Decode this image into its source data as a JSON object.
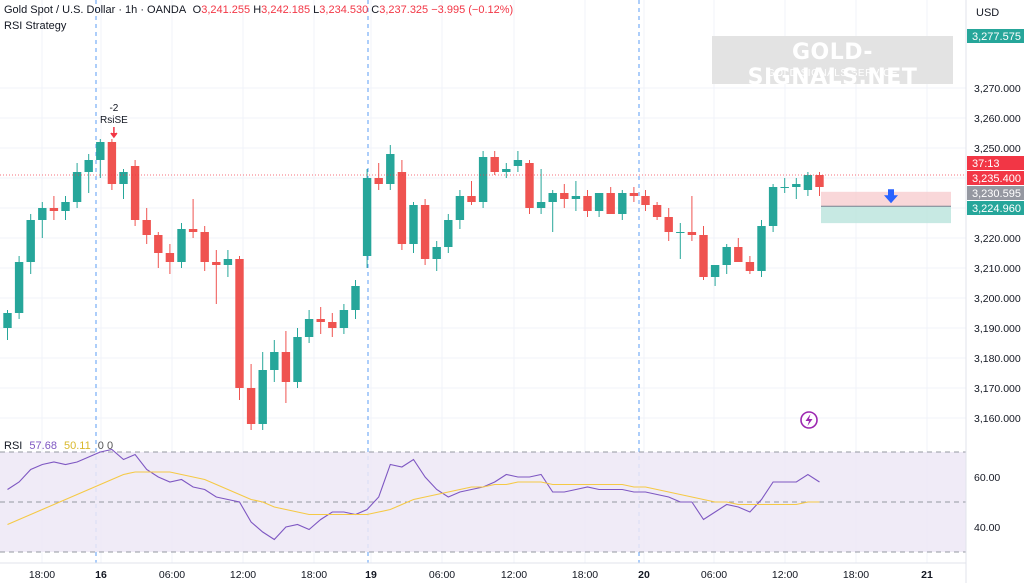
{
  "header": {
    "symbol": "Gold Spot / U.S. Dollar · 1h · OANDA",
    "open_label": "O",
    "open": "3,241.255",
    "high_label": "H",
    "high": "3,242.185",
    "low_label": "L",
    "low": "3,234.530",
    "close_label": "C",
    "close": "3,237.325",
    "change": "−3.995 (−0.12%)",
    "strategy": "RSI Strategy"
  },
  "watermark": {
    "title": "GOLD-SIGNALS.NET",
    "subtitle": "GOLD SIGNALS SERVICE"
  },
  "currency": "USD",
  "price_tags": {
    "high_tag": "3,277.575",
    "countdown": "37:13",
    "last": "3,235.400",
    "mid": "3,230.595",
    "low_tag": "3,224.960"
  },
  "signal": {
    "qty": "-2",
    "label": "RsiSE"
  },
  "rsi_header": {
    "name": "RSI",
    "rsi": "57.68",
    "ma": "50.11",
    "extra": "0  0"
  },
  "icons": {
    "lightning": "lightning-icon",
    "arrow": "arrow-down-icon"
  },
  "colors": {
    "up": "#26a69a",
    "down": "#ef5350",
    "rsi": "#7e57c2",
    "ma": "#f5c945",
    "band": "#ede7f6"
  },
  "chart_data": [
    {
      "type": "candlestick",
      "ylim": [
        3150,
        3285
      ],
      "y_ticks": [
        3160,
        3170,
        3180,
        3190,
        3200,
        3210,
        3220,
        3230,
        3240,
        3250,
        3260,
        3270
      ],
      "y_tick_labels": [
        "3,160.000",
        "3,170.000",
        "3,180.000",
        "3,190.000",
        "3,200.000",
        "3,210.000",
        "3,220.000",
        "3,230.000",
        "3,240.000",
        "3,250.000",
        "3,260.000",
        "3,270.000"
      ],
      "x_labels": [
        "18:00",
        "16",
        "06:00",
        "12:00",
        "18:00",
        "19",
        "06:00",
        "12:00",
        "18:00",
        "20",
        "06:00",
        "12:00",
        "18:00",
        "21"
      ],
      "candles": [
        {
          "o": 3190,
          "h": 3196,
          "l": 3186,
          "c": 3195
        },
        {
          "o": 3195,
          "h": 3214,
          "l": 3193,
          "c": 3212
        },
        {
          "o": 3212,
          "h": 3228,
          "l": 3208,
          "c": 3226
        },
        {
          "o": 3226,
          "h": 3232,
          "l": 3220,
          "c": 3230
        },
        {
          "o": 3230,
          "h": 3234,
          "l": 3226,
          "c": 3229
        },
        {
          "o": 3229,
          "h": 3234,
          "l": 3226,
          "c": 3232
        },
        {
          "o": 3232,
          "h": 3245,
          "l": 3230,
          "c": 3242
        },
        {
          "o": 3242,
          "h": 3248,
          "l": 3235,
          "c": 3246
        },
        {
          "o": 3246,
          "h": 3253,
          "l": 3240,
          "c": 3252
        },
        {
          "o": 3252,
          "h": 3253,
          "l": 3236,
          "c": 3238
        },
        {
          "o": 3238,
          "h": 3243,
          "l": 3233,
          "c": 3242
        },
        {
          "o": 3244,
          "h": 3246,
          "l": 3224,
          "c": 3226
        },
        {
          "o": 3226,
          "h": 3230,
          "l": 3218,
          "c": 3221
        },
        {
          "o": 3221,
          "h": 3222,
          "l": 3210,
          "c": 3215
        },
        {
          "o": 3215,
          "h": 3218,
          "l": 3208,
          "c": 3212
        },
        {
          "o": 3212,
          "h": 3225,
          "l": 3210,
          "c": 3223
        },
        {
          "o": 3223,
          "h": 3233,
          "l": 3220,
          "c": 3222
        },
        {
          "o": 3222,
          "h": 3224,
          "l": 3209,
          "c": 3212
        },
        {
          "o": 3212,
          "h": 3216,
          "l": 3198,
          "c": 3211
        },
        {
          "o": 3211,
          "h": 3216,
          "l": 3207,
          "c": 3213
        },
        {
          "o": 3213,
          "h": 3214,
          "l": 3166,
          "c": 3170
        },
        {
          "o": 3170,
          "h": 3178,
          "l": 3156,
          "c": 3158
        },
        {
          "o": 3158,
          "h": 3182,
          "l": 3156,
          "c": 3176
        },
        {
          "o": 3176,
          "h": 3186,
          "l": 3172,
          "c": 3182
        },
        {
          "o": 3182,
          "h": 3189,
          "l": 3165,
          "c": 3172
        },
        {
          "o": 3172,
          "h": 3190,
          "l": 3170,
          "c": 3187
        },
        {
          "o": 3187,
          "h": 3196,
          "l": 3185,
          "c": 3193
        },
        {
          "o": 3193,
          "h": 3197,
          "l": 3188,
          "c": 3192
        },
        {
          "o": 3192,
          "h": 3195,
          "l": 3187,
          "c": 3190
        },
        {
          "o": 3190,
          "h": 3198,
          "l": 3188,
          "c": 3196
        },
        {
          "o": 3196,
          "h": 3206,
          "l": 3193,
          "c": 3204
        },
        {
          "o": 3214,
          "h": 3243,
          "l": 3210,
          "c": 3240
        },
        {
          "o": 3240,
          "h": 3245,
          "l": 3236,
          "c": 3238
        },
        {
          "o": 3238,
          "h": 3251,
          "l": 3236,
          "c": 3248
        },
        {
          "o": 3242,
          "h": 3246,
          "l": 3216,
          "c": 3218
        },
        {
          "o": 3218,
          "h": 3232,
          "l": 3215,
          "c": 3231
        },
        {
          "o": 3231,
          "h": 3233,
          "l": 3211,
          "c": 3213
        },
        {
          "o": 3213,
          "h": 3219,
          "l": 3209,
          "c": 3217
        },
        {
          "o": 3217,
          "h": 3228,
          "l": 3215,
          "c": 3226
        },
        {
          "o": 3226,
          "h": 3236,
          "l": 3223,
          "c": 3234
        },
        {
          "o": 3234,
          "h": 3239,
          "l": 3231,
          "c": 3232
        },
        {
          "o": 3232,
          "h": 3249,
          "l": 3230,
          "c": 3247
        },
        {
          "o": 3247,
          "h": 3249,
          "l": 3241,
          "c": 3242
        },
        {
          "o": 3242,
          "h": 3245,
          "l": 3240,
          "c": 3243
        },
        {
          "o": 3244,
          "h": 3249,
          "l": 3242,
          "c": 3246
        },
        {
          "o": 3245,
          "h": 3246,
          "l": 3228,
          "c": 3230
        },
        {
          "o": 3230,
          "h": 3243,
          "l": 3228,
          "c": 3232
        },
        {
          "o": 3232,
          "h": 3236,
          "l": 3222,
          "c": 3235
        },
        {
          "o": 3235,
          "h": 3238,
          "l": 3230,
          "c": 3233
        },
        {
          "o": 3233,
          "h": 3239,
          "l": 3229,
          "c": 3234
        },
        {
          "o": 3234,
          "h": 3236,
          "l": 3227,
          "c": 3229
        },
        {
          "o": 3229,
          "h": 3235,
          "l": 3227,
          "c": 3235
        },
        {
          "o": 3235,
          "h": 3237,
          "l": 3228,
          "c": 3228
        },
        {
          "o": 3228,
          "h": 3236,
          "l": 3226,
          "c": 3235
        },
        {
          "o": 3235,
          "h": 3237,
          "l": 3232,
          "c": 3234
        },
        {
          "o": 3234,
          "h": 3236,
          "l": 3229,
          "c": 3231
        },
        {
          "o": 3231,
          "h": 3232,
          "l": 3226,
          "c": 3227
        },
        {
          "o": 3227,
          "h": 3230,
          "l": 3219,
          "c": 3222
        },
        {
          "o": 3222,
          "h": 3225,
          "l": 3213,
          "c": 3222
        },
        {
          "o": 3222,
          "h": 3234,
          "l": 3219,
          "c": 3221
        },
        {
          "o": 3221,
          "h": 3224,
          "l": 3206,
          "c": 3207
        },
        {
          "o": 3207,
          "h": 3211,
          "l": 3204,
          "c": 3211
        },
        {
          "o": 3211,
          "h": 3218,
          "l": 3208,
          "c": 3217
        },
        {
          "o": 3217,
          "h": 3220,
          "l": 3212,
          "c": 3212
        },
        {
          "o": 3212,
          "h": 3214,
          "l": 3208,
          "c": 3209
        },
        {
          "o": 3209,
          "h": 3226,
          "l": 3207,
          "c": 3224
        },
        {
          "o": 3224,
          "h": 3238,
          "l": 3222,
          "c": 3237
        },
        {
          "o": 3237,
          "h": 3240,
          "l": 3235,
          "c": 3237
        },
        {
          "o": 3237,
          "h": 3240,
          "l": 3233,
          "c": 3238
        },
        {
          "o": 3236,
          "h": 3242,
          "l": 3234,
          "c": 3241
        },
        {
          "o": 3241,
          "h": 3242,
          "l": 3234,
          "c": 3237
        }
      ],
      "last_candle_index": 69,
      "signal_candle_index": 9,
      "future_box": {
        "top": 3235.4,
        "mid": 3230.595,
        "bottom": 3224.96
      }
    },
    {
      "type": "line",
      "name": "RSI",
      "ylim": [
        30,
        72
      ],
      "y_ticks": [
        40,
        60
      ],
      "y_tick_labels": [
        "40.00",
        "60.00"
      ],
      "band": [
        30,
        70
      ],
      "midline": 50,
      "series": [
        {
          "name": "RSI",
          "values": [
            55,
            58,
            63,
            65,
            66,
            65,
            66,
            68,
            70,
            71,
            67,
            69,
            63,
            60,
            58,
            59,
            56,
            55,
            52,
            51,
            50,
            42,
            38,
            35,
            40,
            41,
            39,
            43,
            46,
            46,
            45,
            47,
            52,
            65,
            64,
            67,
            60,
            55,
            52,
            54,
            55,
            56,
            58,
            61,
            60,
            60,
            61,
            54,
            54,
            55,
            56,
            55,
            55,
            55,
            54,
            54,
            53,
            52,
            50,
            50,
            43,
            46,
            49,
            48,
            46,
            51,
            58,
            58,
            58,
            61,
            58
          ]
        },
        {
          "name": "MA",
          "values": [
            41,
            43,
            45,
            47,
            49,
            51,
            53,
            55,
            57,
            59,
            61,
            62,
            62,
            62,
            62,
            61,
            60,
            59,
            57,
            55,
            53,
            51,
            50,
            48,
            47,
            46,
            45,
            45,
            45,
            45,
            45,
            45,
            46,
            47,
            49,
            51,
            52,
            53,
            54,
            55,
            56,
            56,
            57,
            57,
            58,
            58,
            58,
            57,
            57,
            57,
            57,
            57,
            57,
            57,
            56,
            56,
            55,
            54,
            53,
            52,
            51,
            50,
            50,
            49,
            49,
            49,
            49,
            49,
            49,
            50,
            50
          ]
        }
      ]
    }
  ]
}
